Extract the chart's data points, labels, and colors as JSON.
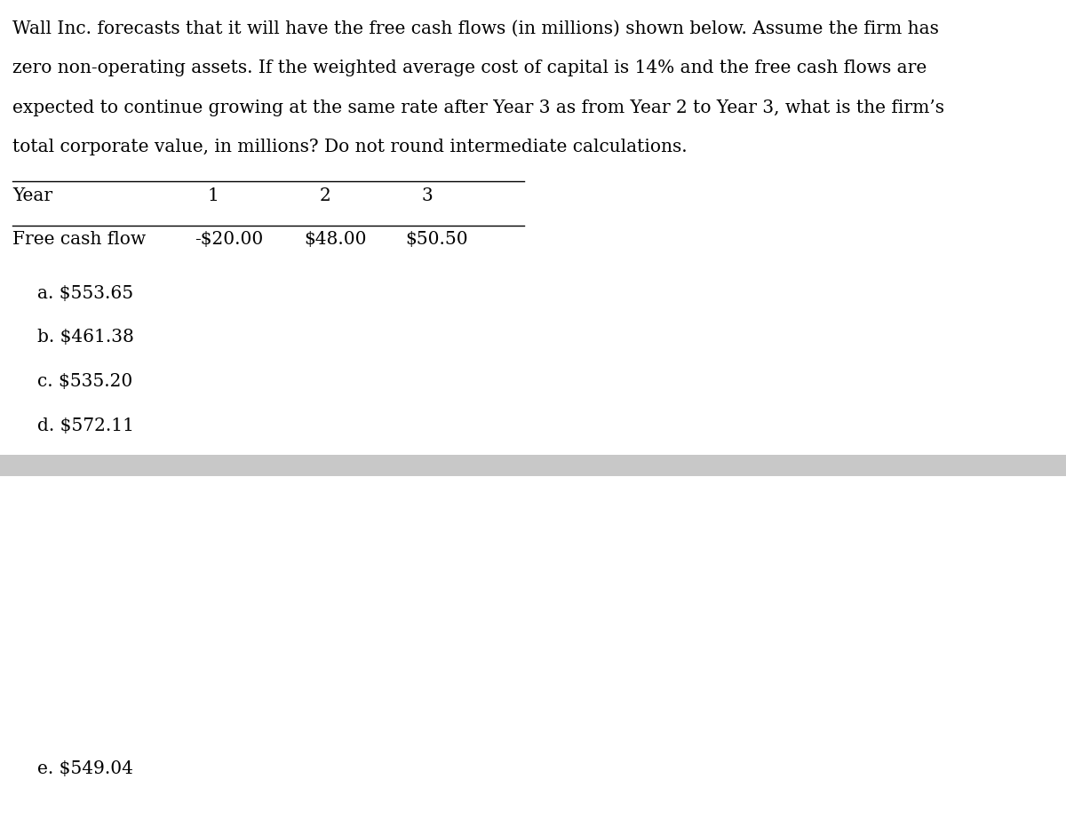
{
  "paragraph_lines": [
    "Wall Inc. forecasts that it will have the free cash flows (in millions) shown below. Assume the firm has",
    "zero non-operating assets. If the weighted average cost of capital is 14% and the free cash flows are",
    "expected to continue growing at the same rate after Year 3 as from Year 2 to Year 3, what is the firm’s",
    "total corporate value, in millions? Do not round intermediate calculations."
  ],
  "table_header": [
    "Year",
    "1",
    "2",
    "3"
  ],
  "table_row_label": "Free cash flow",
  "table_row_values": [
    "-$20.00",
    "$48.00",
    "$50.50"
  ],
  "choices": [
    "a. $553.65",
    "b. $461.38",
    "c. $535.20",
    "d. $572.11"
  ],
  "choice_e": "e. $549.04",
  "bg_color": "#ffffff",
  "text_color": "#000000",
  "font_size": 14.5,
  "separator_bar_color": "#c8c8c8"
}
